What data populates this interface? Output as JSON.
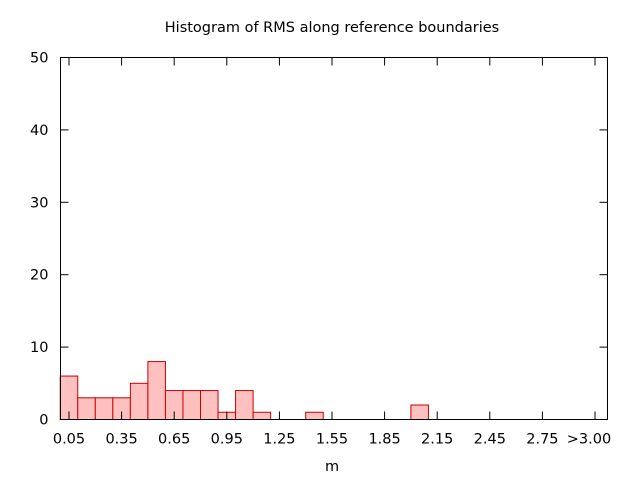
{
  "chart_data": {
    "type": "bar",
    "title": "Histogram of RMS along reference boundaries",
    "xlabel": "m",
    "ylabel": "",
    "ylim": [
      0,
      50
    ],
    "yticks": [
      0,
      10,
      20,
      30,
      40,
      50
    ],
    "xticks": [
      "0.05",
      "0.35",
      "0.65",
      "0.95",
      "1.25",
      "1.55",
      "1.85",
      "2.15",
      "2.45",
      "2.75",
      ">3.00"
    ],
    "bin_width": 0.1,
    "x_first_center": 0.05,
    "bins": [
      {
        "x": 0.05,
        "value": 6
      },
      {
        "x": 0.15,
        "value": 3
      },
      {
        "x": 0.25,
        "value": 3
      },
      {
        "x": 0.35,
        "value": 3
      },
      {
        "x": 0.45,
        "value": 5
      },
      {
        "x": 0.55,
        "value": 8
      },
      {
        "x": 0.65,
        "value": 4
      },
      {
        "x": 0.75,
        "value": 4
      },
      {
        "x": 0.85,
        "value": 4
      },
      {
        "x": 0.95,
        "value": 1
      },
      {
        "x": 1.05,
        "value": 4
      },
      {
        "x": 1.15,
        "value": 1
      },
      {
        "x": 1.45,
        "value": 1
      },
      {
        "x": 2.05,
        "value": 2
      }
    ],
    "grid": false,
    "colors": {
      "bar_fill": "#ffc0c0",
      "bar_stroke": "#cc0000",
      "axis": "#000000"
    }
  }
}
